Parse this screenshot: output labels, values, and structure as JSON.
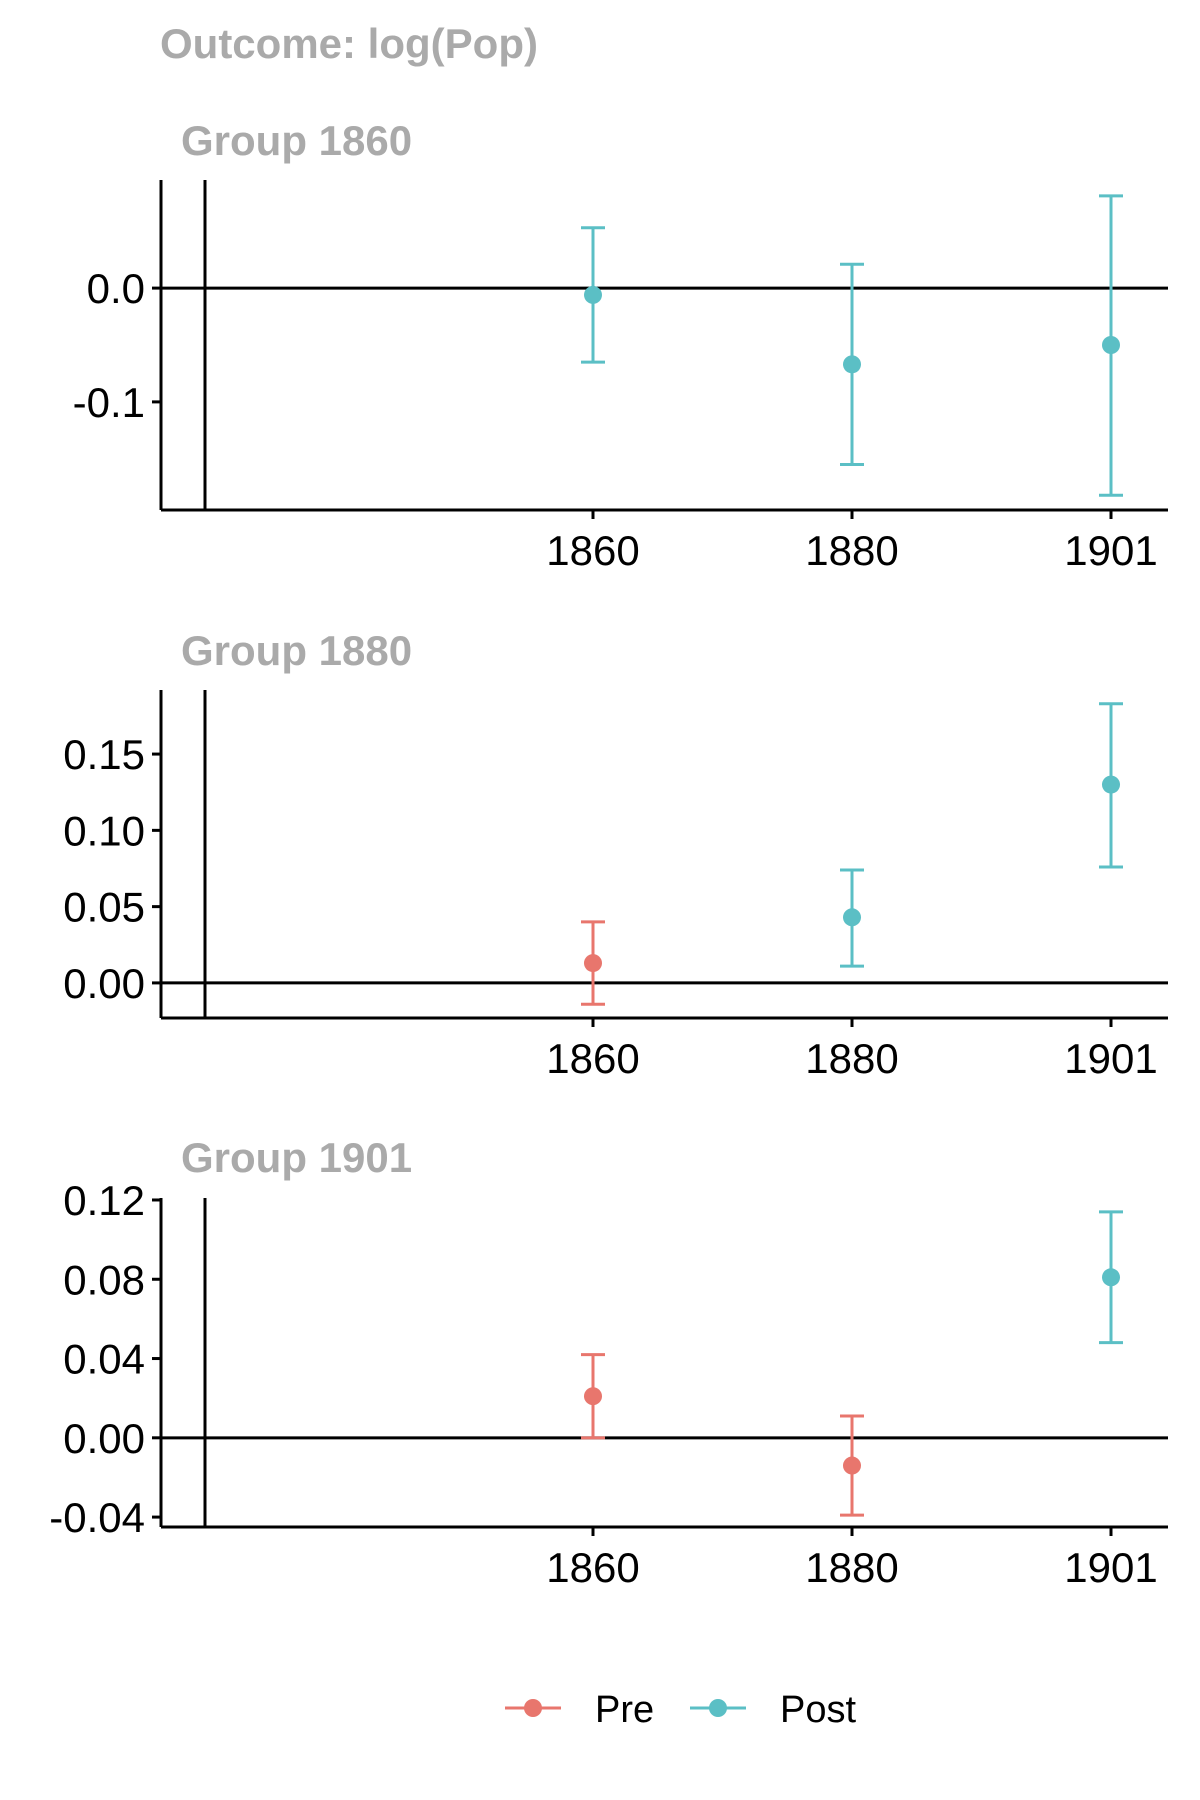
{
  "figure_title": "Outcome: log(Pop)",
  "colors": {
    "pre": "#E8766D",
    "post": "#5BBFC5",
    "axis": "#000000",
    "title": "#AAAAAA"
  },
  "legend": {
    "items": [
      {
        "key": "pre",
        "label": "Pre"
      },
      {
        "key": "post",
        "label": "Post"
      }
    ]
  },
  "chart_data": [
    {
      "type": "scatter",
      "subtitle": "Group 1860",
      "x_ticks": [
        "1860",
        "1880",
        "1901"
      ],
      "y_ticks": [
        "0.0",
        "-0.1"
      ],
      "y_tick_values": [
        0.0,
        -0.1
      ],
      "ylim": [
        -0.195,
        0.095
      ],
      "hline": 0,
      "points": [
        {
          "x": "1860",
          "y": -0.006,
          "lower": -0.065,
          "upper": 0.053,
          "period": "post"
        },
        {
          "x": "1880",
          "y": -0.067,
          "lower": -0.155,
          "upper": 0.021,
          "period": "post"
        },
        {
          "x": "1901",
          "y": -0.05,
          "lower": -0.182,
          "upper": 0.081,
          "period": "post"
        }
      ]
    },
    {
      "type": "scatter",
      "subtitle": "Group 1880",
      "x_ticks": [
        "1860",
        "1880",
        "1901"
      ],
      "y_ticks": [
        "0.15",
        "0.10",
        "0.05",
        "0.00"
      ],
      "y_tick_values": [
        0.15,
        0.1,
        0.05,
        0.0
      ],
      "ylim": [
        -0.023,
        0.192
      ],
      "hline": 0,
      "points": [
        {
          "x": "1860",
          "y": 0.013,
          "lower": -0.014,
          "upper": 0.04,
          "period": "pre"
        },
        {
          "x": "1880",
          "y": 0.043,
          "lower": 0.011,
          "upper": 0.074,
          "period": "post"
        },
        {
          "x": "1901",
          "y": 0.13,
          "lower": 0.076,
          "upper": 0.183,
          "period": "post"
        }
      ]
    },
    {
      "type": "scatter",
      "subtitle": "Group 1901",
      "x_ticks": [
        "1860",
        "1880",
        "1901"
      ],
      "y_ticks": [
        "0.12",
        "0.08",
        "0.04",
        "0.00",
        "-0.04"
      ],
      "y_tick_values": [
        0.12,
        0.08,
        0.04,
        0.0,
        -0.04
      ],
      "ylim": [
        -0.045,
        0.121
      ],
      "hline": 0,
      "points": [
        {
          "x": "1860",
          "y": 0.021,
          "lower": 0.0,
          "upper": 0.042,
          "period": "pre"
        },
        {
          "x": "1880",
          "y": -0.014,
          "lower": -0.039,
          "upper": 0.011,
          "period": "pre"
        },
        {
          "x": "1901",
          "y": 0.081,
          "lower": 0.048,
          "upper": 0.114,
          "period": "post"
        }
      ]
    }
  ]
}
